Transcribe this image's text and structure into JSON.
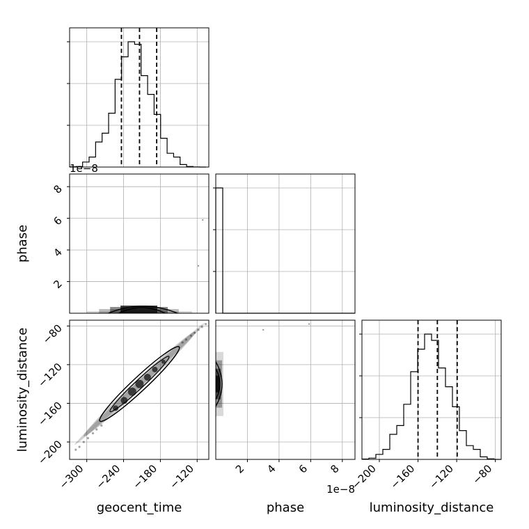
{
  "chart_data": {
    "type": "corner",
    "grid": true,
    "colors": {
      "line": "#000000",
      "grid": "#b0b0b0",
      "frame": "#000000",
      "background": "#ffffff"
    },
    "parameters": [
      "geocent_time",
      "phase",
      "luminosity_distance"
    ],
    "axis_labels": {
      "geocent_time": "geocent_time",
      "phase": "phase",
      "luminosity_distance": "luminosity_distance"
    },
    "ranges": {
      "geocent_time": [
        -328,
        -101
      ],
      "phase": [
        0,
        8.8e-08
      ],
      "luminosity_distance": [
        -218,
        -74
      ]
    },
    "ticks": {
      "geocent_time": [
        {
          "value": -300,
          "label": "−300"
        },
        {
          "value": -240,
          "label": "−240"
        },
        {
          "value": -180,
          "label": "−180"
        },
        {
          "value": -120,
          "label": "−120"
        }
      ],
      "phase": [
        {
          "value": 2e-08,
          "label": "2"
        },
        {
          "value": 4e-08,
          "label": "4"
        },
        {
          "value": 6e-08,
          "label": "6"
        },
        {
          "value": 8e-08,
          "label": "8"
        }
      ],
      "luminosity_distance": [
        {
          "value": -200,
          "label": "−200"
        },
        {
          "value": -160,
          "label": "−160"
        },
        {
          "value": -120,
          "label": "−120"
        },
        {
          "value": -80,
          "label": "−80"
        }
      ]
    },
    "phase_offset_text": "1e−8",
    "histograms": {
      "geocent_time": {
        "bin_edges": [
          -328,
          -317.4,
          -306.8,
          -296.2,
          -285.6,
          -275,
          -264.4,
          -253.8,
          -243.2,
          -232.6,
          -222,
          -211.4,
          -200.8,
          -190.2,
          -179.6,
          -169,
          -158.4,
          -147.8,
          -137.2,
          -126.6,
          -116,
          -105.4
        ],
        "counts": [
          0.2,
          0.4,
          4,
          8,
          20,
          27,
          43,
          70,
          88,
          100,
          98,
          73,
          58,
          42,
          23,
          11,
          8,
          2,
          0.4,
          0.1,
          0
        ],
        "quantiles": [
          -243.5,
          -214.0,
          -186.0
        ]
      },
      "phase": {
        "bin_edges": [
          0,
          4.4e-09,
          8.8e-09,
          1.32e-08,
          1.76e-08,
          2.2e-08,
          2.64e-08,
          3.08e-08,
          3.52e-08,
          3.96e-08,
          4.4e-08,
          4.84e-08,
          5.28e-08,
          5.72e-08,
          6.16e-08,
          6.6e-08,
          7.04e-08,
          7.48e-08,
          7.92e-08,
          8.36e-08,
          8.8e-08
        ],
        "counts": [
          100,
          0,
          0,
          0,
          0,
          0,
          0,
          0,
          0,
          0,
          0,
          0,
          0,
          0,
          0,
          0,
          0,
          0,
          0,
          0
        ],
        "quantiles": []
      },
      "luminosity_distance": {
        "bin_edges": [
          -218,
          -210.8,
          -203.6,
          -196.4,
          -189.2,
          -182,
          -174.8,
          -167.6,
          -160.4,
          -153.2,
          -146,
          -138.8,
          -131.6,
          -124.4,
          -117.2,
          -110,
          -102.8,
          -95.6,
          -88.4,
          -81.2,
          -74
        ],
        "counts": [
          0.3,
          1,
          4,
          8,
          20,
          27,
          44,
          70,
          88,
          100,
          95,
          73,
          58,
          42,
          23,
          11,
          8,
          2,
          0.4,
          0
        ],
        "quantiles": [
          -160.0,
          -140.0,
          -119.5
        ]
      }
    },
    "joint_samples": {
      "geocent_time_vs_luminosity_distance": {
        "correlation": "strong positive",
        "scatter_outliers": [
          {
            "x": -318,
            "y": -208
          },
          {
            "x": -312,
            "y": -205
          },
          {
            "x": -305,
            "y": -200
          },
          {
            "x": -298,
            "y": -196
          },
          {
            "x": -290,
            "y": -191
          },
          {
            "x": -284,
            "y": -187
          },
          {
            "x": -276,
            "y": -183
          },
          {
            "x": -144,
            "y": -97
          },
          {
            "x": -138,
            "y": -94
          },
          {
            "x": -130,
            "y": -90
          },
          {
            "x": -124,
            "y": -87
          },
          {
            "x": -118,
            "y": -84
          },
          {
            "x": -112,
            "y": -81
          },
          {
            "x": -106,
            "y": -78
          }
        ]
      },
      "geocent_time_vs_phase": {
        "outliers": [
          {
            "x": -118,
            "y": 3e-08
          },
          {
            "x": -111,
            "y": 5.9e-08
          }
        ]
      },
      "phase_vs_luminosity_distance": {
        "outliers": [
          {
            "x": 3e-08,
            "y": -84
          },
          {
            "x": 5.9e-08,
            "y": -78
          }
        ]
      }
    }
  }
}
